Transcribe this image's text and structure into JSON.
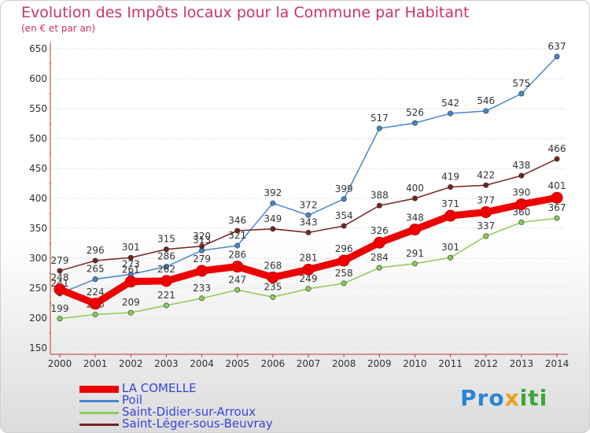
{
  "header": {
    "title": "Evolution des Impôts locaux pour la Commune par Habitant",
    "subtitle": "(en € et par an)"
  },
  "chart_data": {
    "type": "line",
    "title": "Evolution des Impôts locaux pour la Commune par Habitant",
    "subtitle": "(en € et par an)",
    "xlabel": "",
    "ylabel": "",
    "x": [
      "2000",
      "2001",
      "2002",
      "2003",
      "2004",
      "2005",
      "2006",
      "2007",
      "2008",
      "2009",
      "2010",
      "2011",
      "2012",
      "2013",
      "2014"
    ],
    "ylim": [
      150,
      650
    ],
    "yticks": [
      150,
      200,
      250,
      300,
      350,
      400,
      450,
      500,
      550,
      600,
      650
    ],
    "grid": true,
    "legend_position": "bottom-left",
    "series": [
      {
        "name": "LA COMELLE",
        "color": "#ee0000",
        "values": [
          248,
          224,
          261,
          262,
          279,
          286,
          268,
          281,
          296,
          326,
          348,
          371,
          377,
          390,
          401
        ]
      },
      {
        "name": "Poil",
        "color": "#4488cc",
        "values": [
          241,
          265,
          273,
          286,
          313,
          321,
          392,
          372,
          399,
          517,
          526,
          542,
          546,
          575,
          637
        ]
      },
      {
        "name": "Saint-Didier-sur-Arroux",
        "color": "#88cc55",
        "values": [
          199,
          206,
          209,
          221,
          233,
          247,
          235,
          249,
          258,
          284,
          291,
          301,
          337,
          360,
          367
        ]
      },
      {
        "name": "Saint-Léger-sous-Beuvray",
        "color": "#772222",
        "values": [
          279,
          296,
          301,
          315,
          320,
          346,
          349,
          343,
          354,
          388,
          400,
          419,
          422,
          438,
          466
        ]
      }
    ]
  },
  "logo": {
    "part1": "Pro",
    "part2": "x",
    "part3": "iti"
  }
}
